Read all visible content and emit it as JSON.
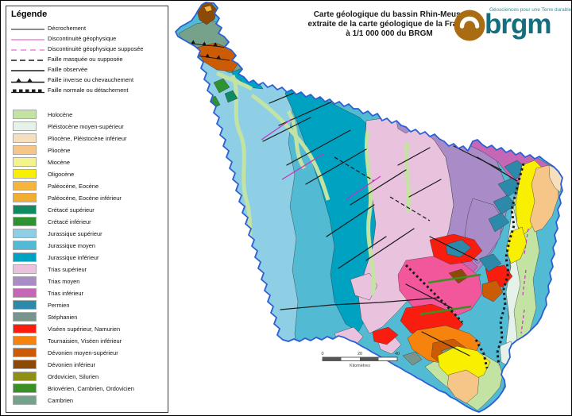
{
  "legend": {
    "title": "Légende",
    "line_items": [
      {
        "label": "Décrochement"
      },
      {
        "label": "Discontinuité géophysique"
      },
      {
        "label": "Discontinuité géophysique supposée"
      },
      {
        "label": "Faille masquée ou supposée"
      },
      {
        "label": "Faille observée"
      },
      {
        "label": "Faille inverse ou chevauchement"
      },
      {
        "label": "Faille normale ou détachement"
      }
    ],
    "color_items": [
      {
        "label": "Holocène",
        "color_key": "holocene"
      },
      {
        "label": "Pléistocène moyen-supérieur",
        "color_key": "pleistocene"
      },
      {
        "label": "Pliocène, Pléistocène inférieur",
        "color_key": "pliocene_pleist"
      },
      {
        "label": "Pliocène",
        "color_key": "pliocene"
      },
      {
        "label": "Miocène",
        "color_key": "miocene"
      },
      {
        "label": "Oligocène",
        "color_key": "oligocene"
      },
      {
        "label": "Paléocène, Eocène",
        "color_key": "paleocene"
      },
      {
        "label": "Paléocène, Eocène inférieur",
        "color_key": "paleocene_inf"
      },
      {
        "label": "Crétacé supérieur",
        "color_key": "cretace_sup"
      },
      {
        "label": "Crétacé inférieur",
        "color_key": "cretace_inf"
      },
      {
        "label": "Jurassique supérieur",
        "color_key": "jurassique_sup"
      },
      {
        "label": "Jurassique moyen",
        "color_key": "jurassique_moyen"
      },
      {
        "label": "Jurassique inférieur",
        "color_key": "jurassique_inf"
      },
      {
        "label": "Trias supérieur",
        "color_key": "trias_sup"
      },
      {
        "label": "Trias moyen",
        "color_key": "trias_moyen"
      },
      {
        "label": "Trias inférieur",
        "color_key": "trias_inf"
      },
      {
        "label": "Permien",
        "color_key": "permien"
      },
      {
        "label": "Stéphanien",
        "color_key": "stephanien"
      },
      {
        "label": "Viséen supérieur, Namurien",
        "color_key": "viseen"
      },
      {
        "label": "Tournaisien, Viséen inférieur",
        "color_key": "tournaisien"
      },
      {
        "label": "Dévonien moyen-supérieur",
        "color_key": "devonien_ms"
      },
      {
        "label": "Dévonien inférieur",
        "color_key": "devonien_inf"
      },
      {
        "label": "Ordovicien, Silurien",
        "color_key": "ordovicien"
      },
      {
        "label": "Briovérien, Cambrien, Ordovicien",
        "color_key": "brioverien"
      },
      {
        "label": "Cambrien",
        "color_key": "cambrien"
      }
    ]
  },
  "map": {
    "title_lines": {
      "l1": "Carte géologique du bassin Rhin-Meuse",
      "l2": "extraite de la carte géologique de la France",
      "l3": "à  1/1 000 000 du BRGM"
    },
    "scale": {
      "tick0": "0",
      "tick1": "20",
      "tick2": "40",
      "unit": "Kilomètres"
    }
  },
  "logo": {
    "word": "brgm",
    "tagline": "Géosciences pour une Terre durable"
  },
  "colors": {
    "holocene": "#c3e3a3",
    "pleistocene": "#e4f2ea",
    "pliocene_pleist": "#f6dfbd",
    "pliocene": "#f6c689",
    "miocene": "#f4f48d",
    "oligocene": "#f8f000",
    "paleocene": "#f6b43a",
    "paleocene_inf": "#f3ad2f",
    "cretace_sup": "#108a63",
    "cretace_inf": "#2d9330",
    "jurassique_sup": "#8ecfe5",
    "jurassique_moyen": "#52bad2",
    "jurassique_inf": "#00a2c1",
    "trias_sup": "#e9c3dd",
    "trias_moyen": "#a98cc7",
    "trias_inf": "#c567b5",
    "permien": "#2d89a9",
    "stephanien": "#77958c",
    "viseen": "#f91d10",
    "tournaisien": "#f5830e",
    "devonien_ms": "#cb5c05",
    "devonien_inf": "#8c4a06",
    "ordovicien": "#8f8f15",
    "brioverien": "#3b9025",
    "cambrien": "#76a18b",
    "rose": "#f2579b",
    "boundary": "#2b5fd4",
    "fault": "#1a1a1a",
    "magenta": "#c833be",
    "magenta_light": "#ee85d9",
    "logo_brown": "#a96c12",
    "logo_teal": "#136f7e",
    "logo_tag": "#2e8fa0"
  }
}
